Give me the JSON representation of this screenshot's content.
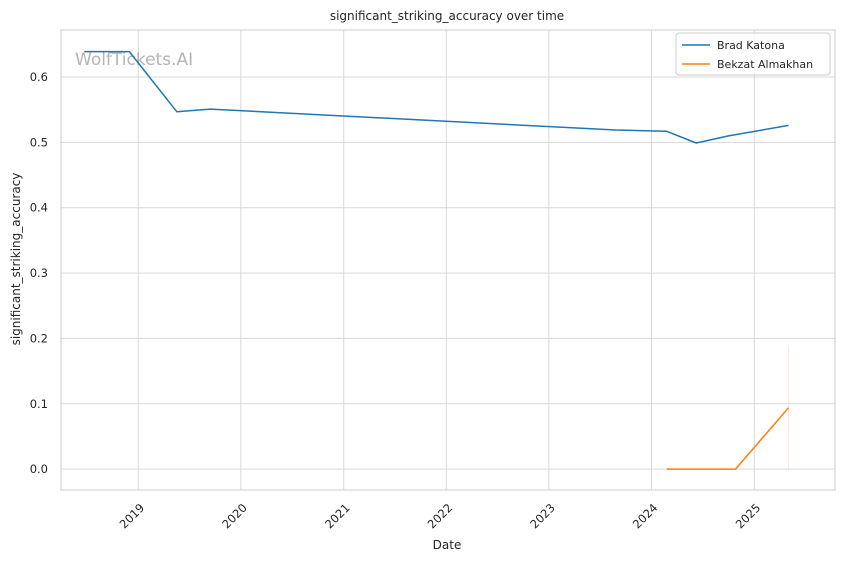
{
  "watermark": "WolfTickets.AI",
  "chart_data": {
    "type": "line",
    "title": "significant_striking_accuracy over time",
    "xlabel": "Date",
    "ylabel": "significant_striking_accuracy",
    "x_ticks": [
      "2019",
      "2020",
      "2021",
      "2022",
      "2023",
      "2024",
      "2025"
    ],
    "y_ticks": [
      "0.0",
      "0.1",
      "0.2",
      "0.3",
      "0.4",
      "0.5",
      "0.6"
    ],
    "xlim": [
      "2018-04-01",
      "2025-10-15"
    ],
    "ylim": [
      -0.032,
      0.672
    ],
    "grid": true,
    "legend_position": "top-right",
    "series": [
      {
        "name": "Brad Katona",
        "color": "#1f77b4",
        "points": [
          {
            "x": "2018-06-23",
            "y": 0.639
          },
          {
            "x": "2018-11-30",
            "y": 0.639
          },
          {
            "x": "2019-05-18",
            "y": 0.547
          },
          {
            "x": "2019-09-14",
            "y": 0.551
          },
          {
            "x": "2023-08-26",
            "y": 0.519
          },
          {
            "x": "2024-02-24",
            "y": 0.517
          },
          {
            "x": "2024-06-08",
            "y": 0.499
          },
          {
            "x": "2024-10-01",
            "y": 0.51
          },
          {
            "x": "2025-05-03",
            "y": 0.526
          }
        ]
      },
      {
        "name": "Bekzat Almakhan",
        "color": "#ff7f0e",
        "points": [
          {
            "x": "2024-02-24",
            "y": 0.0
          },
          {
            "x": "2024-10-26",
            "y": 0.0
          },
          {
            "x": "2025-05-03",
            "y": 0.094
          }
        ],
        "band": {
          "x": "2025-05-03",
          "low": 0.0,
          "high": 0.188
        }
      }
    ]
  }
}
